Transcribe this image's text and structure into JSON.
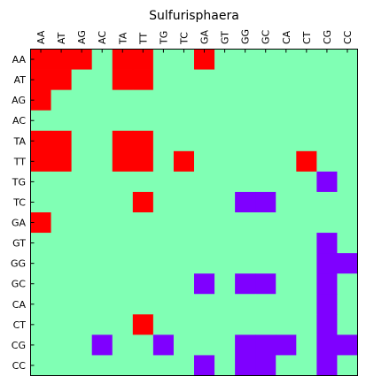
{
  "chart_data": {
    "type": "heatmap",
    "title": "Sulfurisphaera",
    "x_labels": [
      "AA",
      "AT",
      "AG",
      "AC",
      "TA",
      "TT",
      "TG",
      "TC",
      "GA",
      "GT",
      "GG",
      "GC",
      "CA",
      "CT",
      "CG",
      "CC"
    ],
    "y_labels": [
      "AA",
      "AT",
      "AG",
      "AC",
      "TA",
      "TT",
      "TG",
      "TC",
      "GA",
      "GT",
      "GG",
      "GC",
      "CA",
      "CT",
      "CG",
      "CC"
    ],
    "legend": false,
    "grid": false,
    "value_colors": {
      "-1": "#7f00ff",
      "0": "#80ffb4",
      "1": "#ff0000"
    },
    "matrix": [
      [
        1,
        1,
        1,
        0,
        1,
        1,
        0,
        0,
        1,
        0,
        0,
        0,
        0,
        0,
        0,
        0
      ],
      [
        1,
        1,
        0,
        0,
        1,
        1,
        0,
        0,
        0,
        0,
        0,
        0,
        0,
        0,
        0,
        0
      ],
      [
        1,
        0,
        0,
        0,
        0,
        0,
        0,
        0,
        0,
        0,
        0,
        0,
        0,
        0,
        0,
        0
      ],
      [
        0,
        0,
        0,
        0,
        0,
        0,
        0,
        0,
        0,
        0,
        0,
        0,
        0,
        0,
        0,
        0
      ],
      [
        1,
        1,
        0,
        0,
        1,
        1,
        0,
        0,
        0,
        0,
        0,
        0,
        0,
        0,
        0,
        0
      ],
      [
        1,
        1,
        0,
        0,
        1,
        1,
        0,
        1,
        0,
        0,
        0,
        0,
        0,
        1,
        0,
        0
      ],
      [
        0,
        0,
        0,
        0,
        0,
        0,
        0,
        0,
        0,
        0,
        0,
        0,
        0,
        0,
        -1,
        0
      ],
      [
        0,
        0,
        0,
        0,
        0,
        1,
        0,
        0,
        0,
        0,
        -1,
        -1,
        0,
        0,
        0,
        0
      ],
      [
        1,
        0,
        0,
        0,
        0,
        0,
        0,
        0,
        0,
        0,
        0,
        0,
        0,
        0,
        0,
        0
      ],
      [
        0,
        0,
        0,
        0,
        0,
        0,
        0,
        0,
        0,
        0,
        0,
        0,
        0,
        0,
        -1,
        0
      ],
      [
        0,
        0,
        0,
        0,
        0,
        0,
        0,
        0,
        0,
        0,
        0,
        0,
        0,
        0,
        -1,
        -1
      ],
      [
        0,
        0,
        0,
        0,
        0,
        0,
        0,
        0,
        -1,
        0,
        -1,
        -1,
        0,
        0,
        -1,
        0
      ],
      [
        0,
        0,
        0,
        0,
        0,
        0,
        0,
        0,
        0,
        0,
        0,
        0,
        0,
        0,
        -1,
        0
      ],
      [
        0,
        0,
        0,
        0,
        0,
        1,
        0,
        0,
        0,
        0,
        0,
        0,
        0,
        0,
        -1,
        0
      ],
      [
        0,
        0,
        0,
        -1,
        0,
        0,
        -1,
        0,
        0,
        0,
        -1,
        -1,
        -1,
        0,
        -1,
        -1
      ],
      [
        0,
        0,
        0,
        0,
        0,
        0,
        0,
        0,
        -1,
        0,
        -1,
        -1,
        0,
        0,
        -1,
        0
      ]
    ]
  }
}
